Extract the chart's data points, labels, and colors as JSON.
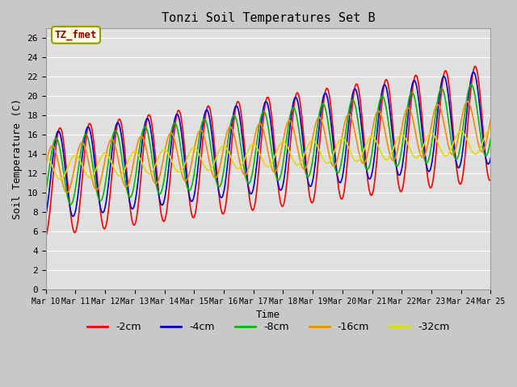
{
  "title": "Tonzi Soil Temperatures Set B",
  "xlabel": "Time",
  "ylabel": "Soil Temperature (C)",
  "annotation_text": "TZ_fmet",
  "annotation_color": "#8B0000",
  "annotation_bg": "#FFFFE0",
  "annotation_border": "#999900",
  "ylim": [
    0,
    27
  ],
  "yticks": [
    0,
    2,
    4,
    6,
    8,
    10,
    12,
    14,
    16,
    18,
    20,
    22,
    24,
    26
  ],
  "bg_color": "#E8E8E8",
  "grid_color": "#FFFFFF",
  "series": {
    "-2cm": {
      "color": "#FF0000",
      "linewidth": 1.2
    },
    "-4cm": {
      "color": "#0000CC",
      "linewidth": 1.2
    },
    "-8cm": {
      "color": "#00BB00",
      "linewidth": 1.2
    },
    "-16cm": {
      "color": "#FF8800",
      "linewidth": 1.2
    },
    "-32cm": {
      "color": "#DDDD00",
      "linewidth": 1.2
    }
  },
  "legend_labels": [
    "-2cm",
    "-4cm",
    "-8cm",
    "-16cm",
    "-32cm"
  ],
  "legend_colors": [
    "#FF0000",
    "#0000CC",
    "#00BB00",
    "#FF8800",
    "#DDDD00"
  ],
  "num_days": 15,
  "x_tick_labels": [
    "Mar 10",
    "Mar 11",
    "Mar 12",
    "Mar 13",
    "Mar 14",
    "Mar 15",
    "Mar 16",
    "Mar 17",
    "Mar 18",
    "Mar 19",
    "Mar 20",
    "Mar 21",
    "Mar 22",
    "Mar 23",
    "Mar 24",
    "Mar 25"
  ]
}
